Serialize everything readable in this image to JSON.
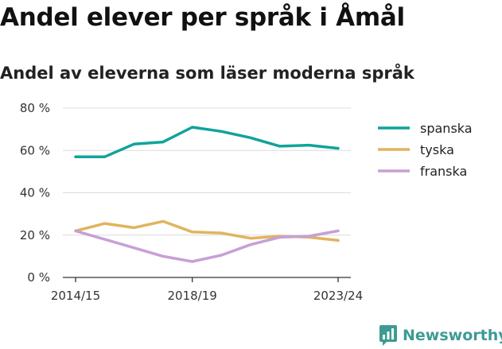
{
  "title": "Andel elever per språk i Åmål",
  "subtitle": "Andel av eleverna som läser moderna språk",
  "brand": "Newsworthy",
  "chart_data": {
    "type": "line",
    "x": [
      "2014/15",
      "2015/16",
      "2016/17",
      "2017/18",
      "2018/19",
      "2019/20",
      "2020/21",
      "2021/22",
      "2022/23",
      "2023/24"
    ],
    "x_tick_labels": [
      "2014/15",
      "2018/19",
      "2023/24"
    ],
    "y_ticks": [
      0,
      20,
      40,
      60,
      80
    ],
    "y_tick_labels": [
      "0 %",
      "20 %",
      "40 %",
      "60 %",
      "80 %"
    ],
    "ylim": [
      0,
      80
    ],
    "grid": true,
    "legend_position": "right",
    "series": [
      {
        "name": "spanska",
        "color": "#10a39a",
        "values": [
          57,
          57,
          63,
          64,
          71,
          69,
          66,
          62,
          62.5,
          61
        ]
      },
      {
        "name": "tyska",
        "color": "#e0b45e",
        "values": [
          22,
          25.5,
          23.5,
          26.5,
          21.5,
          21,
          18.5,
          19.5,
          19,
          17.5
        ]
      },
      {
        "name": "franska",
        "color": "#c7a0d4",
        "values": [
          22,
          18,
          14,
          10,
          7.5,
          10.5,
          15.5,
          19,
          19.5,
          22
        ]
      }
    ]
  },
  "colors": {
    "grid": "#dcdcdc",
    "axis": "#333333",
    "brand": "#3d9b93"
  }
}
